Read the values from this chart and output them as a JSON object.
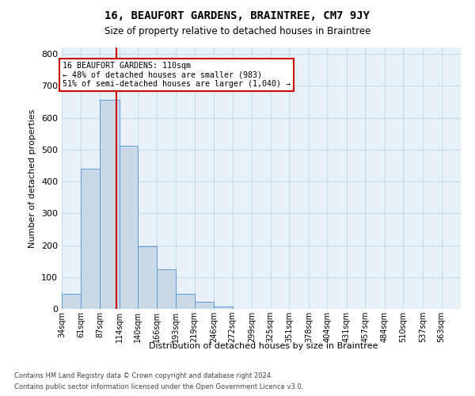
{
  "title_line1": "16, BEAUFORT GARDENS, BRAINTREE, CM7 9JY",
  "title_line2": "Size of property relative to detached houses in Braintree",
  "xlabel": "Distribution of detached houses by size in Braintree",
  "ylabel": "Number of detached properties",
  "bin_labels": [
    "34sqm",
    "61sqm",
    "87sqm",
    "114sqm",
    "140sqm",
    "166sqm",
    "193sqm",
    "219sqm",
    "246sqm",
    "272sqm",
    "299sqm",
    "325sqm",
    "351sqm",
    "378sqm",
    "404sqm",
    "431sqm",
    "457sqm",
    "484sqm",
    "510sqm",
    "537sqm",
    "563sqm"
  ],
  "bin_edges": [
    34,
    61,
    87,
    114,
    140,
    166,
    193,
    219,
    246,
    272,
    299,
    325,
    351,
    378,
    404,
    431,
    457,
    484,
    510,
    537,
    563,
    590
  ],
  "bar_values": [
    47,
    440,
    657,
    513,
    196,
    125,
    47,
    22,
    8,
    0,
    0,
    0,
    0,
    0,
    0,
    0,
    0,
    0,
    0,
    0,
    0
  ],
  "bar_color": "#c9d9e8",
  "bar_edgecolor": "#5b9bd5",
  "grid_color": "#c8d8e8",
  "property_size": 110,
  "property_label": "16 BEAUFORT GARDENS: 110sqm",
  "pct_smaller": "48% of detached houses are smaller (983)",
  "pct_larger": "51% of semi-detached houses are larger (1,040) →",
  "vline_color": "#cc0000",
  "ylim": [
    0,
    820
  ],
  "yticks": [
    0,
    100,
    200,
    300,
    400,
    500,
    600,
    700,
    800
  ],
  "footer1": "Contains HM Land Registry data © Crown copyright and database right 2024.",
  "footer2": "Contains public sector information licensed under the Open Government Licence v3.0.",
  "background_color": "#e8f0f8",
  "box_edgecolor": "#cc0000",
  "box_facecolor": "#ffffff"
}
